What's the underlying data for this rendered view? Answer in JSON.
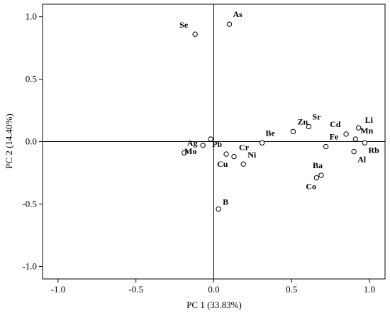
{
  "chart_data": {
    "type": "scatter",
    "xlabel": "PC 1 (33.83%)",
    "ylabel": "PC 2 (14.40%)",
    "xlim": [
      -1.1,
      1.1
    ],
    "ylim": [
      -1.1,
      1.1
    ],
    "x_ticks": [
      "-1.0",
      "-0.5",
      "0.0",
      "0.5",
      "1.0"
    ],
    "y_ticks": [
      "1.0",
      "0.5",
      "0.0",
      "-0.5",
      "-1.0"
    ],
    "reference_lines": [
      0,
      0
    ],
    "grid": false,
    "marker": "open-circle",
    "points": [
      {
        "label": "Se",
        "x": -0.12,
        "y": 0.86
      },
      {
        "label": "As",
        "x": 0.1,
        "y": 0.94
      },
      {
        "label": "Ag",
        "x": -0.19,
        "y": -0.09
      },
      {
        "label": "Pb",
        "x": -0.02,
        "y": 0.02
      },
      {
        "label": "Mo",
        "x": -0.07,
        "y": -0.03
      },
      {
        "label": "Cu",
        "x": 0.08,
        "y": -0.1
      },
      {
        "label": "Cr",
        "x": 0.13,
        "y": -0.12
      },
      {
        "label": "Ni",
        "x": 0.19,
        "y": -0.18
      },
      {
        "label": "Be",
        "x": 0.31,
        "y": -0.01
      },
      {
        "label": "Zn",
        "x": 0.51,
        "y": 0.08
      },
      {
        "label": "Sr",
        "x": 0.61,
        "y": 0.12
      },
      {
        "label": "Fe",
        "x": 0.72,
        "y": -0.04
      },
      {
        "label": "Cd",
        "x": 0.85,
        "y": 0.06
      },
      {
        "label": "Li",
        "x": 0.93,
        "y": 0.11
      },
      {
        "label": "Mn",
        "x": 0.91,
        "y": 0.02
      },
      {
        "label": "Rb",
        "x": 0.97,
        "y": -0.01
      },
      {
        "label": "Al",
        "x": 0.9,
        "y": -0.08
      },
      {
        "label": "Ba",
        "x": 0.69,
        "y": -0.27
      },
      {
        "label": "Co",
        "x": 0.66,
        "y": -0.29
      },
      {
        "label": "B",
        "x": 0.03,
        "y": -0.54
      }
    ]
  }
}
